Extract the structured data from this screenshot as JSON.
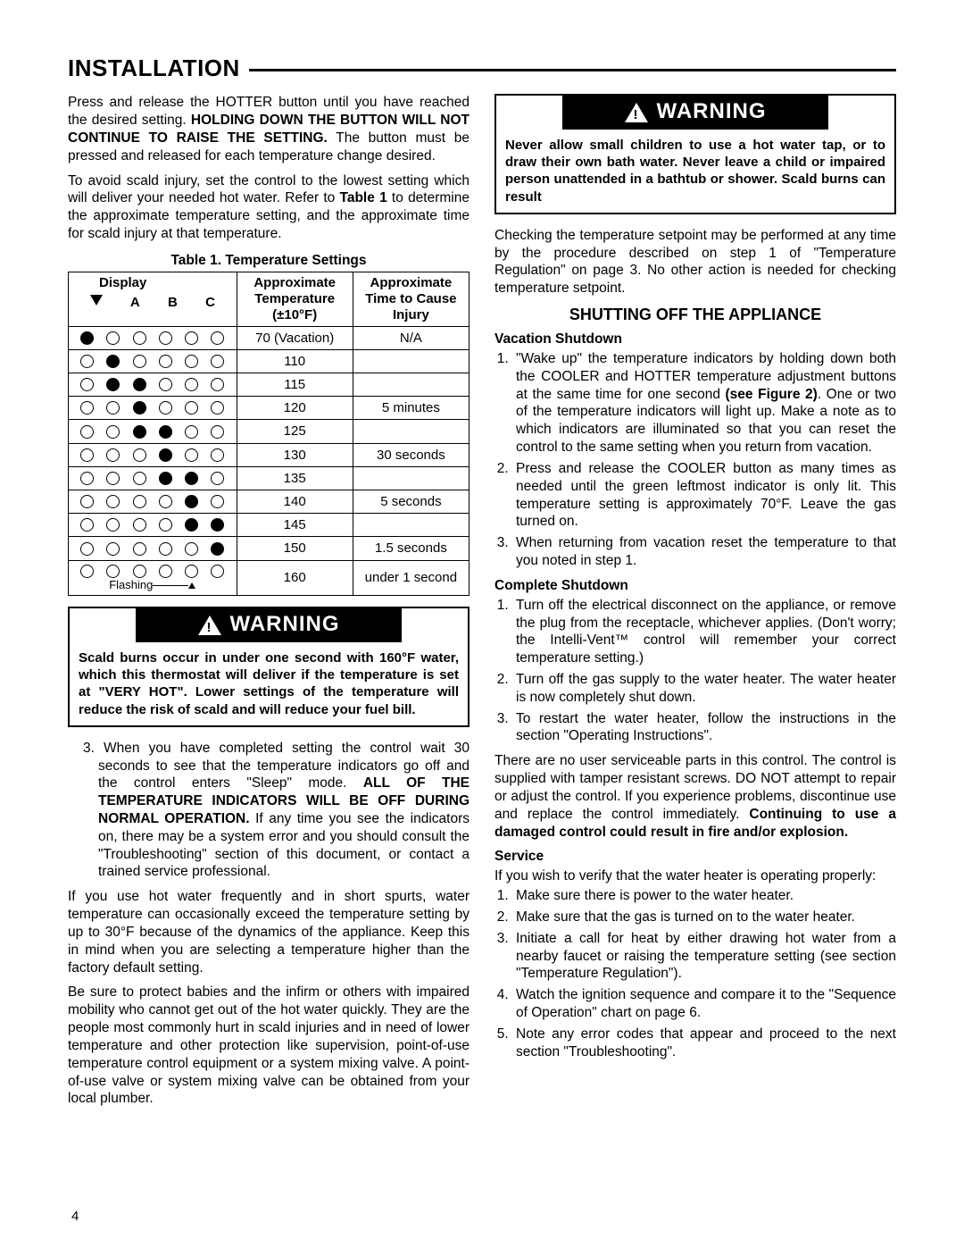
{
  "page_number": "4",
  "section_heading": "INSTALLATION",
  "col1": {
    "p1a": "Press and release the HOTTER button until you have reached the desired setting. ",
    "p1b": "HOLDING DOWN THE BUTTON WILL NOT CONTINUE TO RAISE THE SETTING.",
    "p1c": " The button must be pressed and released for each temperature change desired.",
    "p2a": "To avoid scald injury, set the control to the lowest setting which will deliver your needed hot water. Refer to ",
    "p2b": "Table 1",
    "p2c": " to determine the approximate temperature setting, and the approximate time for scald injury at that temperature.",
    "table_caption": "Table 1. Temperature Settings",
    "table": {
      "headers": {
        "display": "Display",
        "sub_arrow": "▼",
        "sub_a": "A",
        "sub_b": "B",
        "sub_c": "C",
        "temp": "Approximate\nTemperature\n(±10°F)",
        "injury": "Approximate\nTime to Cause\nInjury"
      },
      "rows": [
        {
          "filled": 0,
          "temp": "70 (Vacation)",
          "injury": "N/A"
        },
        {
          "filled": 1,
          "temp": "110",
          "injury": ""
        },
        {
          "filled": 2,
          "temp": "115",
          "injury": ""
        },
        {
          "filled": 2,
          "temp": "120",
          "injury": "5 minutes"
        },
        {
          "filled": 2,
          "temp": "125",
          "injury": ""
        },
        {
          "filled": 3,
          "temp": "130",
          "injury": "30 seconds"
        },
        {
          "filled": 3,
          "temp": "135",
          "injury": ""
        },
        {
          "filled": 4,
          "temp": "140",
          "injury": "5 seconds"
        },
        {
          "filled": 4,
          "temp": "145",
          "injury": ""
        },
        {
          "filled": 5,
          "temp": "150",
          "injury": "1.5 seconds"
        },
        {
          "filled": 5,
          "temp": "160",
          "injury": "under 1 second",
          "flashing": true
        }
      ],
      "flashing_label": "Flashing"
    },
    "warning1": "Scald burns occur in under one second with 160°F water, which this thermostat will deliver if the temperature is set at \"VERY HOT\". Lower settings of the temperature will reduce the risk of scald and will reduce your fuel bill.",
    "step3a": "3. When you have completed setting the control wait 30 seconds to see that the temperature indicators go off and the control enters \"Sleep\" mode. ",
    "step3b": "ALL OF THE TEMPERATURE INDICATORS WILL BE OFF DURING NORMAL OPERATION.",
    "step3c": " If any time you see the indicators on, there may be a system error and you should consult the \"Troubleshooting\" section of this document, or contact a trained service professional.",
    "p4": "If you use hot water frequently and in short spurts, water temperature can occasionally exceed the temperature setting by up to 30°F because of the dynamics of the appliance. Keep this in mind when you are selecting a temperature higher than the factory default setting.",
    "p5": "Be sure to protect babies and the infirm or others with impaired mobility who cannot get out of the hot water quickly. They are the people most commonly hurt in scald injuries and in need of lower temperature and other protection like supervision, point-of-use temperature control equipment or a system mixing valve. A point-of-use valve or system mixing valve can be obtained from your local plumber."
  },
  "col2": {
    "warning2": "Never allow small children to use a hot water tap, or to draw their own bath water. Never leave a child or impaired person unattended in a bathtub or shower. Scald burns can result",
    "p_check": "Checking the temperature setpoint may be performed at any time by the procedure described on step 1 of \"Temperature Regulation\" on page 3. No other action is needed for checking temperature setpoint.",
    "heading_shutoff": "SHUTTING OFF THE APPLIANCE",
    "vacation_heading": "Vacation Shutdown",
    "vacation_list": [
      "\"Wake up\" the temperature indicators by holding down both the COOLER and HOTTER temperature adjustment buttons at the same time for one second (see Figure 2). One or two of the temperature indicators will light up. Make a note as to which indicators are illuminated so that you can reset the control to the same setting when you return from vacation.",
      "Press and release the COOLER button as many times as needed until the green leftmost indicator is only lit. This temperature setting is approximately 70°F. Leave the gas turned on.",
      "When returning from vacation reset the temperature to that you noted in step 1."
    ],
    "complete_heading": "Complete Shutdown",
    "complete_list": [
      "Turn off the electrical disconnect on the appliance, or remove the plug from the receptacle, whichever applies. (Don't worry; the Intelli-Vent™ control will remember your correct temperature setting.)",
      "Turn off the gas supply to the water heater. The water heater is now completely shut down.",
      "To restart the water heater, follow the instructions in the section \"Operating Instructions\"."
    ],
    "no_service_a": "There are no user serviceable parts in this control. The control is supplied with tamper resistant screws. DO NOT attempt to repair or adjust the control. If you experience problems, discontinue use and replace the control immediately. ",
    "no_service_b": "Continuing to use a damaged control could result in fire and/or explosion.",
    "service_heading": "Service",
    "service_intro": "If you wish to verify that the water heater is operating properly:",
    "service_list": [
      "Make sure there is power to the water heater.",
      "Make sure that the gas is turned on to the water heater.",
      "Initiate a call for heat by either drawing hot water from a nearby faucet or raising the temperature setting (see section \"Temperature Regulation\").",
      "Watch the ignition sequence and compare it to the \"Sequence of Operation\" chart on page 6.",
      "Note any error codes that appear and proceed to the next section \"Troubleshooting\"."
    ]
  },
  "warning_label": "WARNING"
}
